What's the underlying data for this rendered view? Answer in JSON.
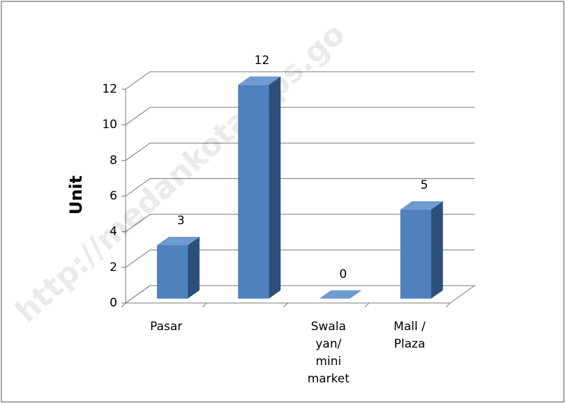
{
  "chart_data": {
    "type": "bar3d",
    "y_label": "Unit",
    "categories": [
      "Pasar",
      null,
      "Swala yan/ mini market",
      "Mall / Plaza"
    ],
    "values": [
      3,
      12,
      0,
      5
    ],
    "color": "#4f81bd",
    "ylim": [
      0,
      12
    ],
    "yticks": [
      0,
      2,
      4,
      6,
      8,
      10,
      12
    ],
    "grid": true,
    "watermark": "http://medankota.bps.go"
  }
}
